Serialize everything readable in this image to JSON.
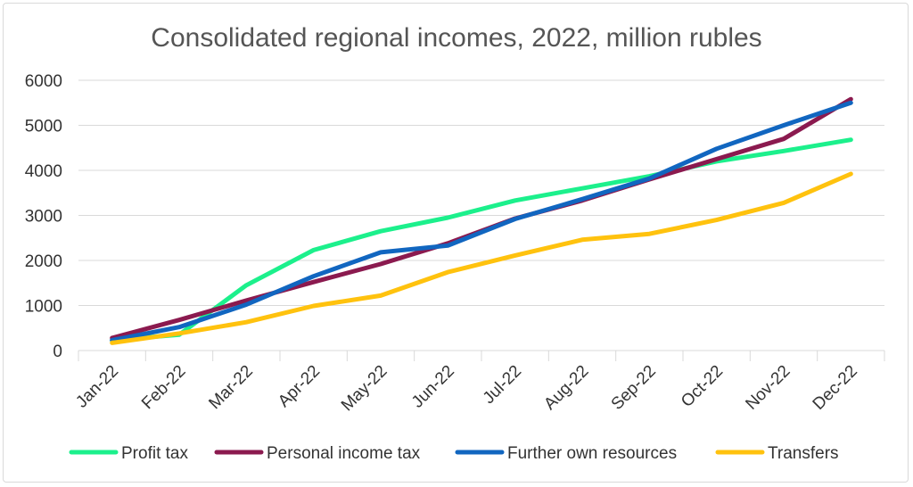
{
  "chart_data": {
    "type": "line",
    "title": "Consolidated regional incomes, 2022, million rubles",
    "xlabel": "",
    "ylabel": "",
    "ylim": [
      0,
      6000
    ],
    "yticks": [
      0,
      1000,
      2000,
      3000,
      4000,
      5000,
      6000
    ],
    "categories": [
      "Jan-22",
      "Feb-22",
      "Mar-22",
      "Apr-22",
      "May-22",
      "Jun-22",
      "Jul-22",
      "Aug-22",
      "Sep-22",
      "Oct-22",
      "Nov-22",
      "Dec-22"
    ],
    "grid": "horizontal",
    "legend": "bottom",
    "series": [
      {
        "name": "Profit tax",
        "color": "#1CF08C",
        "values": [
          230,
          350,
          1450,
          2230,
          2650,
          2950,
          3330,
          3600,
          3870,
          4200,
          4430,
          4680
        ]
      },
      {
        "name": "Personal income tax",
        "color": "#8B1A4F",
        "values": [
          280,
          680,
          1110,
          1520,
          1920,
          2380,
          2930,
          3330,
          3800,
          4250,
          4700,
          5580
        ]
      },
      {
        "name": "Further own resources",
        "color": "#1166C0",
        "values": [
          230,
          520,
          1020,
          1650,
          2180,
          2330,
          2920,
          3360,
          3820,
          4480,
          5000,
          5500
        ]
      },
      {
        "name": "Transfers",
        "color": "#FFC20E",
        "values": [
          170,
          380,
          630,
          990,
          1220,
          1740,
          2110,
          2460,
          2590,
          2900,
          3280,
          3920
        ]
      }
    ]
  }
}
